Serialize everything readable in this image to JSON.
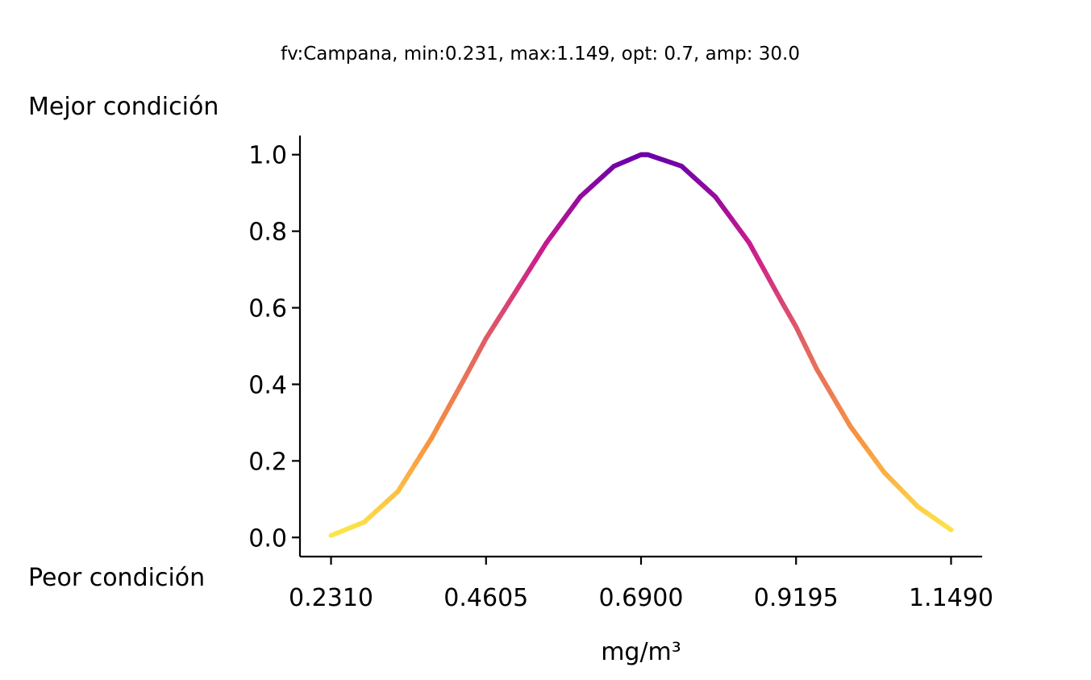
{
  "chart_data": {
    "type": "line",
    "title": "fv:Campana, min:0.231, max:1.149, opt: 0.7, amp: 30.0",
    "xlabel": "mg/m³",
    "ylabel": "",
    "top_label": "Mejor condición",
    "bottom_label": "Peor condición",
    "xlim": [
      0.185,
      1.195
    ],
    "ylim": [
      -0.05,
      1.05
    ],
    "x_ticks": [
      0.231,
      0.4605,
      0.69,
      0.9195,
      1.149
    ],
    "x_tick_labels": [
      "0.2310",
      "0.4605",
      "0.6900",
      "0.9195",
      "1.1490"
    ],
    "y_ticks": [
      0.0,
      0.2,
      0.4,
      0.6,
      0.8,
      1.0
    ],
    "y_tick_labels": [
      "0.0",
      "0.2",
      "0.4",
      "0.6",
      "0.8",
      "1.0"
    ],
    "grid": false,
    "colormap": "plasma_r",
    "colormap_range": [
      "#fde94a",
      "#f89540",
      "#e16462",
      "#cc1c8d",
      "#6a00a8"
    ],
    "series": [
      {
        "x": [
          0.231,
          0.28,
          0.33,
          0.38,
          0.43,
          0.4605,
          0.5,
          0.55,
          0.6,
          0.65,
          0.69,
          0.7,
          0.75,
          0.8,
          0.85,
          0.9,
          0.9195,
          0.95,
          1.0,
          1.05,
          1.1,
          1.149
        ],
        "y": [
          0.005,
          0.04,
          0.12,
          0.26,
          0.42,
          0.52,
          0.63,
          0.77,
          0.89,
          0.97,
          1.0,
          1.0,
          0.97,
          0.89,
          0.77,
          0.61,
          0.55,
          0.44,
          0.29,
          0.17,
          0.08,
          0.02
        ]
      }
    ]
  }
}
